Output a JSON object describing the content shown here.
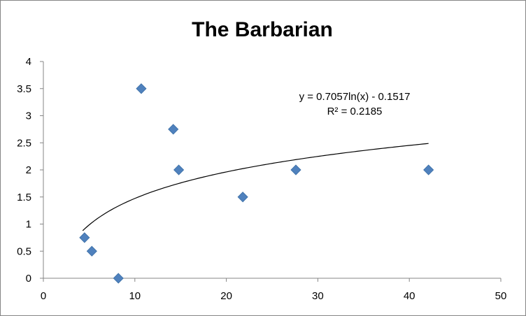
{
  "chart_data": {
    "type": "scatter",
    "title": "The Barbarian",
    "xlabel": "",
    "ylabel": "",
    "xlim": [
      0,
      50
    ],
    "ylim": [
      0,
      4
    ],
    "x_ticks": [
      0,
      10,
      20,
      30,
      40,
      50
    ],
    "y_ticks": [
      0,
      0.5,
      1,
      1.5,
      2,
      2.5,
      3,
      3.5,
      4
    ],
    "grid": false,
    "legend": "none",
    "marker": "diamond",
    "marker_color": "#4F81BD",
    "series": [
      {
        "x": [
          4.5,
          5.3,
          8.2,
          10.7,
          14.2,
          14.8,
          21.8,
          27.6,
          42.1
        ],
        "y": [
          0.75,
          0.5,
          0.0,
          3.5,
          2.75,
          2.0,
          1.5,
          2.0,
          2.0
        ]
      }
    ],
    "trendline": {
      "type": "logarithmic",
      "a": 0.7057,
      "b": -0.1517,
      "x_start": 4.3,
      "x_end": 42.1,
      "color": "#000000",
      "equation_label": "y = 0.7057ln(x) - 0.1517",
      "r2_label": "R² = 0.2185"
    }
  }
}
